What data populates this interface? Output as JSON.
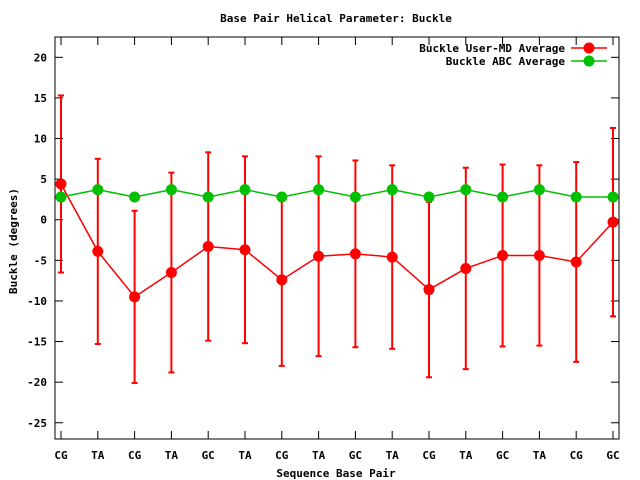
{
  "chart_data": {
    "type": "line",
    "title": "Base Pair Helical Parameter: Buckle",
    "xlabel": "Sequence Base Pair",
    "ylabel": "Buckle (degrees)",
    "categories": [
      "CG",
      "TA",
      "CG",
      "TA",
      "GC",
      "TA",
      "CG",
      "TA",
      "GC",
      "TA",
      "CG",
      "TA",
      "GC",
      "TA",
      "CG",
      "GC"
    ],
    "ylim": [
      -27,
      22.5
    ],
    "yticks": [
      -25,
      -20,
      -15,
      -10,
      -5,
      0,
      5,
      10,
      15,
      20
    ],
    "legend_position": "top-right",
    "grid": false,
    "series": [
      {
        "name": "Buckle User-MD Average",
        "color": "#ff0000",
        "values": [
          4.4,
          -3.9,
          -9.5,
          -6.5,
          -3.3,
          -3.7,
          -7.4,
          -4.5,
          -4.2,
          -4.6,
          -8.6,
          -6.0,
          -4.4,
          -4.4,
          -5.2,
          -0.3
        ],
        "error": [
          10.9,
          11.4,
          10.6,
          12.3,
          11.6,
          11.5,
          10.6,
          12.3,
          11.5,
          11.3,
          10.8,
          12.4,
          11.2,
          11.1,
          12.3,
          11.6
        ]
      },
      {
        "name": "Buckle ABC Average",
        "color": "#00c000",
        "values": [
          2.8,
          3.7,
          2.8,
          3.7,
          2.8,
          3.7,
          2.8,
          3.7,
          2.8,
          3.7,
          2.8,
          3.7,
          2.8,
          3.7,
          2.8,
          2.8
        ]
      }
    ]
  }
}
